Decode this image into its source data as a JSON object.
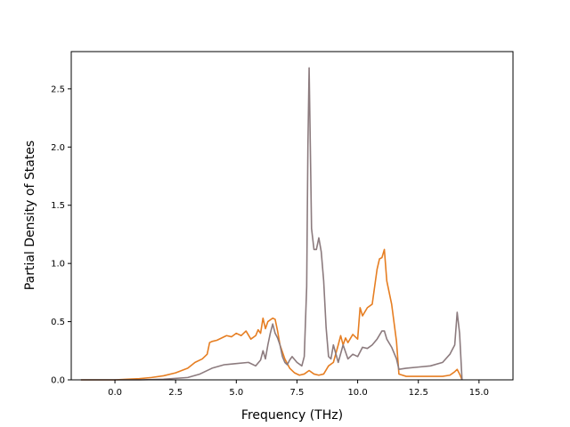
{
  "chart_data": {
    "type": "line",
    "title": "",
    "xlabel": "Frequency (THz)",
    "ylabel": "Partial Density of States",
    "xlim": [
      -1.8,
      16.4
    ],
    "ylim": [
      0,
      2.82
    ],
    "xticks": [
      0.0,
      2.5,
      5.0,
      7.5,
      10.0,
      12.5,
      15.0
    ],
    "xtick_labels": [
      "0.0",
      "2.5",
      "5.0",
      "7.5",
      "10.0",
      "12.5",
      "15.0"
    ],
    "yticks": [
      0.0,
      0.5,
      1.0,
      1.5,
      2.0,
      2.5
    ],
    "ytick_labels": [
      "0.0",
      "0.5",
      "1.0",
      "1.5",
      "2.0",
      "2.5"
    ],
    "grid": false,
    "legend": "none",
    "series": [
      {
        "color": "#e67e22",
        "x": [
          -1.4,
          0.0,
          0.5,
          1.0,
          1.5,
          2.0,
          2.5,
          3.0,
          3.3,
          3.6,
          3.8,
          3.9,
          4.0,
          4.2,
          4.4,
          4.6,
          4.8,
          5.0,
          5.2,
          5.4,
          5.6,
          5.8,
          5.9,
          6.0,
          6.1,
          6.2,
          6.3,
          6.5,
          6.6,
          6.7,
          6.8,
          7.0,
          7.2,
          7.4,
          7.6,
          7.8,
          8.0,
          8.2,
          8.4,
          8.6,
          8.8,
          9.0,
          9.2,
          9.3,
          9.4,
          9.5,
          9.6,
          9.8,
          10.0,
          10.1,
          10.2,
          10.4,
          10.6,
          10.8,
          10.9,
          11.0,
          11.1,
          11.2,
          11.4,
          11.6,
          11.7,
          12.0,
          12.5,
          13.0,
          13.5,
          13.8,
          14.0,
          14.1,
          14.2,
          14.3
        ],
        "y": [
          0.0,
          0.0,
          0.005,
          0.01,
          0.02,
          0.035,
          0.06,
          0.1,
          0.15,
          0.18,
          0.22,
          0.32,
          0.33,
          0.34,
          0.36,
          0.38,
          0.37,
          0.4,
          0.38,
          0.42,
          0.35,
          0.38,
          0.43,
          0.4,
          0.53,
          0.44,
          0.5,
          0.53,
          0.52,
          0.42,
          0.3,
          0.18,
          0.1,
          0.06,
          0.04,
          0.05,
          0.08,
          0.05,
          0.04,
          0.05,
          0.12,
          0.15,
          0.3,
          0.38,
          0.3,
          0.36,
          0.32,
          0.39,
          0.35,
          0.62,
          0.55,
          0.62,
          0.65,
          0.95,
          1.04,
          1.05,
          1.12,
          0.85,
          0.65,
          0.33,
          0.05,
          0.03,
          0.03,
          0.03,
          0.03,
          0.04,
          0.07,
          0.09,
          0.05,
          0.0
        ]
      },
      {
        "color": "#8c7b7e",
        "x": [
          -1.4,
          0.0,
          1.0,
          2.0,
          3.0,
          3.5,
          4.0,
          4.5,
          5.0,
          5.5,
          5.8,
          6.0,
          6.1,
          6.2,
          6.3,
          6.4,
          6.5,
          6.6,
          6.7,
          6.8,
          6.9,
          7.0,
          7.1,
          7.2,
          7.3,
          7.5,
          7.7,
          7.8,
          7.9,
          7.95,
          8.0,
          8.05,
          8.1,
          8.2,
          8.3,
          8.4,
          8.5,
          8.6,
          8.7,
          8.8,
          8.9,
          9.0,
          9.2,
          9.4,
          9.6,
          9.8,
          10.0,
          10.2,
          10.4,
          10.6,
          10.8,
          11.0,
          11.1,
          11.2,
          11.4,
          11.6,
          11.7,
          12.0,
          12.5,
          13.0,
          13.5,
          13.8,
          14.0,
          14.1,
          14.2,
          14.3
        ],
        "y": [
          0.0,
          0.0,
          0.0,
          0.005,
          0.02,
          0.05,
          0.1,
          0.13,
          0.14,
          0.15,
          0.12,
          0.17,
          0.25,
          0.18,
          0.3,
          0.4,
          0.48,
          0.4,
          0.36,
          0.3,
          0.2,
          0.15,
          0.13,
          0.17,
          0.2,
          0.15,
          0.12,
          0.2,
          0.8,
          2.0,
          2.68,
          2.0,
          1.3,
          1.12,
          1.12,
          1.22,
          1.1,
          0.85,
          0.45,
          0.2,
          0.18,
          0.3,
          0.15,
          0.3,
          0.18,
          0.22,
          0.2,
          0.28,
          0.27,
          0.3,
          0.35,
          0.42,
          0.42,
          0.35,
          0.28,
          0.18,
          0.09,
          0.1,
          0.11,
          0.12,
          0.15,
          0.22,
          0.3,
          0.58,
          0.4,
          0.0
        ]
      }
    ]
  }
}
